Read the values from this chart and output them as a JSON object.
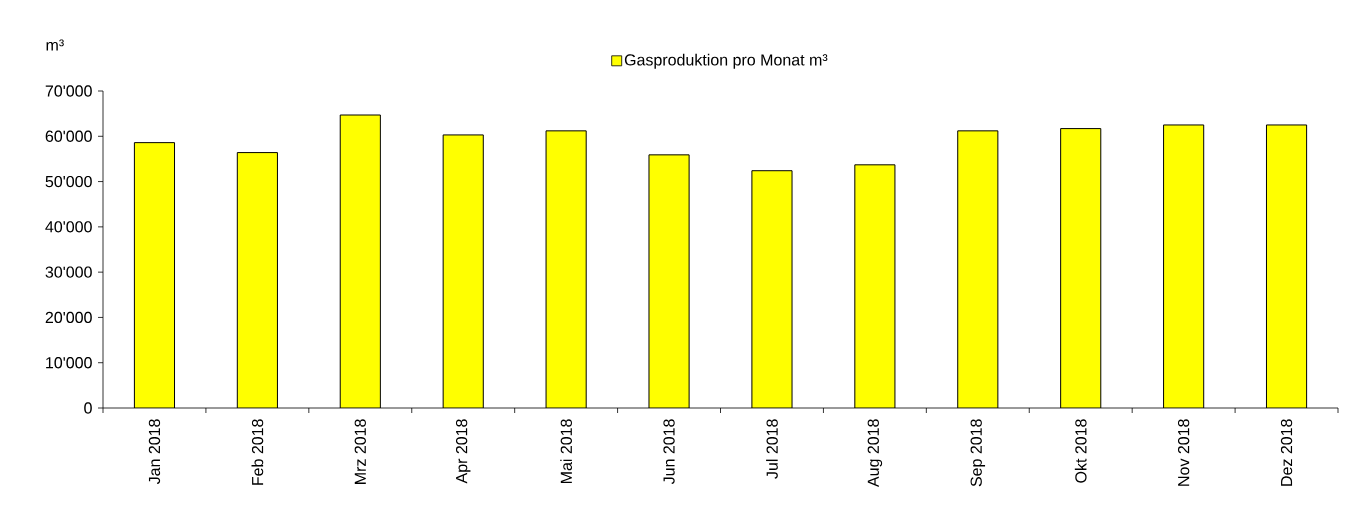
{
  "chart_data": {
    "type": "bar",
    "categories": [
      "Jan 2018",
      "Feb 2018",
      "Mrz 2018",
      "Apr 2018",
      "Mai 2018",
      "Jun 2018",
      "Jul 2018",
      "Aug 2018",
      "Sep 2018",
      "Okt 2018",
      "Nov 2018",
      "Dez 2018"
    ],
    "series": [
      {
        "name": "Gasproduktion pro Monat m³",
        "color": "#ffff00",
        "values": [
          58600,
          56400,
          64700,
          60300,
          61200,
          55900,
          52400,
          53700,
          61200,
          61700,
          62500,
          62500
        ]
      }
    ],
    "ylabel": "m³",
    "ylim": [
      0,
      70000
    ],
    "yticks": [
      0,
      {
        "value": 10000,
        "label": "10'000"
      },
      {
        "value": 20000,
        "label": "20'000"
      },
      {
        "value": 30000,
        "label": "30'000"
      },
      {
        "value": 40000,
        "label": "40'000"
      },
      {
        "value": 50000,
        "label": "50'000"
      },
      {
        "value": 60000,
        "label": "60'000"
      },
      {
        "value": 70000,
        "label": "70'000"
      }
    ],
    "grid": false,
    "legend": "top"
  }
}
